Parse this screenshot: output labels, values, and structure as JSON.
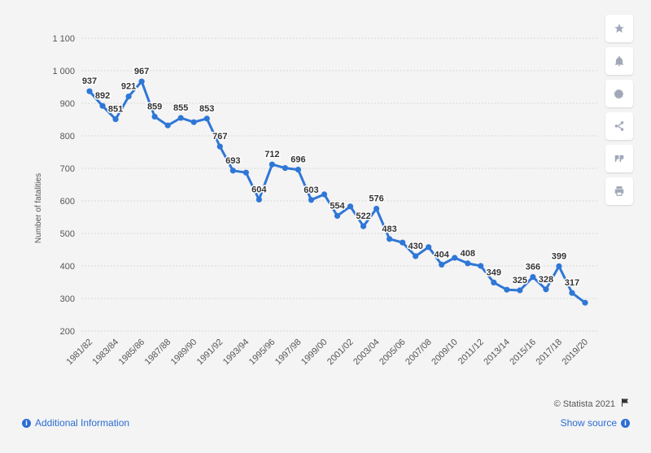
{
  "chart_data": {
    "type": "line",
    "title": "",
    "xlabel": "",
    "ylabel": "Number of fatalities",
    "ylim": [
      200,
      1100
    ],
    "yticks": [
      "200",
      "300",
      "400",
      "500",
      "600",
      "700",
      "800",
      "900",
      "1 000",
      "1 100"
    ],
    "ytick_values": [
      200,
      300,
      400,
      500,
      600,
      700,
      800,
      900,
      1000,
      1100
    ],
    "grid": true,
    "line_color": "#2f77d6",
    "categories": [
      "1981/82",
      "1982/83",
      "1983/84",
      "1984/85",
      "1985/86",
      "1986/87",
      "1987/88",
      "1988/89",
      "1989/90",
      "1990/91",
      "1991/92",
      "1992/93",
      "1993/94",
      "1994/95",
      "1995/96",
      "1996/97",
      "1997/98",
      "1998/99",
      "1999/00",
      "2000/01",
      "2001/02",
      "2002/03",
      "2003/04",
      "2004/05",
      "2005/06",
      "2006/07",
      "2007/08",
      "2008/09",
      "2009/10",
      "2010/11",
      "2011/12",
      "2012/13",
      "2013/14",
      "2014/15",
      "2015/16",
      "2016/17",
      "2017/18",
      "2018/19",
      "2019/20"
    ],
    "xtick_labels": [
      "1981/82",
      "1983/84",
      "1985/86",
      "1987/88",
      "1989/90",
      "1991/92",
      "1993/94",
      "1995/96",
      "1997/98",
      "1999/00",
      "2001/02",
      "2003/04",
      "2005/06",
      "2007/08",
      "2009/10",
      "2011/12",
      "2013/14",
      "2015/16",
      "2017/18",
      "2019/20"
    ],
    "series": [
      {
        "values": [
          937,
          892,
          851,
          921,
          967,
          859,
          832,
          855,
          842,
          853,
          767,
          693,
          687,
          604,
          712,
          701,
          696,
          603,
          620,
          554,
          583,
          522,
          576,
          483,
          472,
          430,
          458,
          404,
          425,
          408,
          400,
          349,
          327,
          325,
          366,
          328,
          399,
          317,
          287
        ]
      }
    ],
    "data_labels": [
      {
        "i": 0,
        "text": "937"
      },
      {
        "i": 1,
        "text": "892"
      },
      {
        "i": 2,
        "text": "851"
      },
      {
        "i": 3,
        "text": "921"
      },
      {
        "i": 4,
        "text": "967"
      },
      {
        "i": 5,
        "text": "859"
      },
      {
        "i": 7,
        "text": "855"
      },
      {
        "i": 9,
        "text": "853"
      },
      {
        "i": 10,
        "text": "767"
      },
      {
        "i": 11,
        "text": "693"
      },
      {
        "i": 13,
        "text": "604"
      },
      {
        "i": 14,
        "text": "712"
      },
      {
        "i": 16,
        "text": "696"
      },
      {
        "i": 17,
        "text": "603"
      },
      {
        "i": 19,
        "text": "554"
      },
      {
        "i": 21,
        "text": "522"
      },
      {
        "i": 22,
        "text": "576"
      },
      {
        "i": 23,
        "text": "483"
      },
      {
        "i": 25,
        "text": "430"
      },
      {
        "i": 27,
        "text": "404"
      },
      {
        "i": 29,
        "text": "408"
      },
      {
        "i": 31,
        "text": "349"
      },
      {
        "i": 33,
        "text": "325"
      },
      {
        "i": 34,
        "text": "366"
      },
      {
        "i": 35,
        "text": "328"
      },
      {
        "i": 36,
        "text": "399"
      },
      {
        "i": 37,
        "text": "317"
      }
    ]
  },
  "toolbar": {
    "icons": [
      "star-icon",
      "bell-icon",
      "gear-icon",
      "share-icon",
      "quote-icon",
      "print-icon"
    ]
  },
  "footer": {
    "additional_info": "Additional Information",
    "copyright": "© Statista 2021",
    "show_source": "Show source"
  }
}
